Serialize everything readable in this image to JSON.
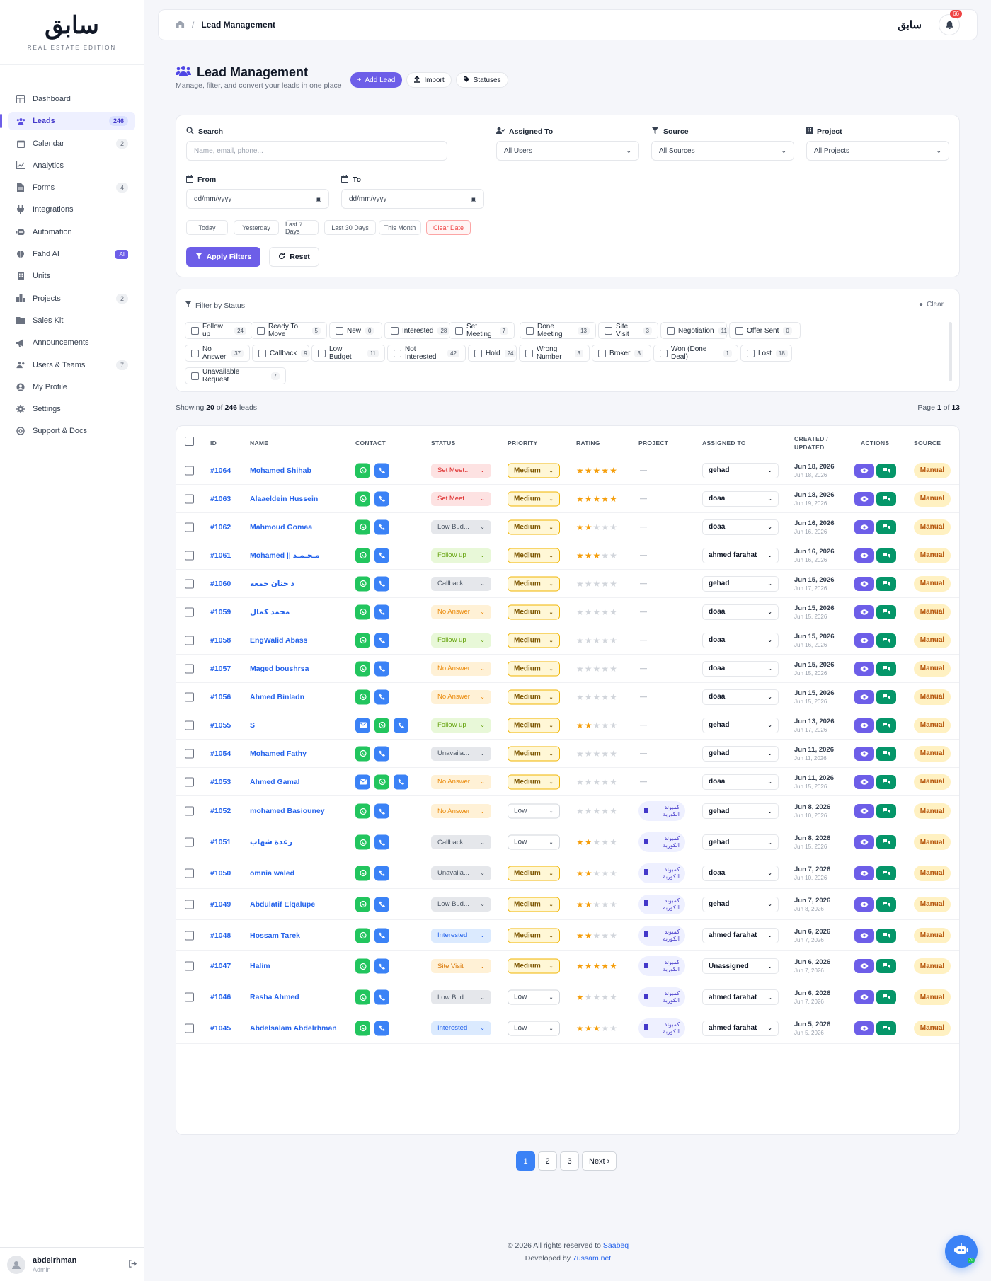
{
  "brand": {
    "logo_text": "سابق",
    "sub": "REAL ESTATE EDITION",
    "mini": "سابق"
  },
  "nav": [
    {
      "label": "Dashboard",
      "icon": "dashboard-icon",
      "badge": ""
    },
    {
      "label": "Leads",
      "icon": "users-icon",
      "badge": "246",
      "active": true
    },
    {
      "label": "Calendar",
      "icon": "calendar-icon",
      "badge": "2"
    },
    {
      "label": "Analytics",
      "icon": "chart-icon",
      "badge": ""
    },
    {
      "label": "Forms",
      "icon": "form-icon",
      "badge": "4"
    },
    {
      "label": "Integrations",
      "icon": "plug-icon",
      "badge": ""
    },
    {
      "label": "Automation",
      "icon": "robot-icon",
      "badge": ""
    },
    {
      "label": "Fahd AI",
      "icon": "brain-icon",
      "badge": "AI",
      "ai": true
    },
    {
      "label": "Units",
      "icon": "building-icon",
      "badge": ""
    },
    {
      "label": "Projects",
      "icon": "city-icon",
      "badge": "2"
    },
    {
      "label": "Sales Kit",
      "icon": "folder-icon",
      "badge": ""
    },
    {
      "label": "Announcements",
      "icon": "megaphone-icon",
      "badge": ""
    },
    {
      "label": "Users & Teams",
      "icon": "team-icon",
      "badge": "7"
    },
    {
      "label": "My Profile",
      "icon": "profile-icon",
      "badge": ""
    },
    {
      "label": "Settings",
      "icon": "gear-icon",
      "badge": ""
    },
    {
      "label": "Support & Docs",
      "icon": "lifebuoy-icon",
      "badge": ""
    }
  ],
  "user": {
    "name": "abdelrhman",
    "role": "Admin"
  },
  "topbar": {
    "crumb": "Lead Management",
    "notifications": "66"
  },
  "page": {
    "title": "Lead Management",
    "subtitle": "Manage, filter, and convert your leads in one place",
    "add_lead": "Add Lead",
    "import": "Import",
    "statuses": "Statuses"
  },
  "filters": {
    "search_label": "Search",
    "search_placeholder": "Name, email, phone...",
    "assigned_label": "Assigned To",
    "assigned_value": "All Users",
    "source_label": "Source",
    "source_value": "All Sources",
    "project_label": "Project",
    "project_value": "All Projects",
    "from_label": "From",
    "from_value": "dd/mm/yyyy",
    "to_label": "To",
    "to_value": "dd/mm/yyyy",
    "quick_dates": [
      "Today",
      "Yesterday",
      "Last 7 Days",
      "Last 30 Days",
      "This Month"
    ],
    "clear_date": "Clear Date",
    "apply": "Apply Filters",
    "reset": "Reset"
  },
  "status_filter": {
    "title": "Filter by Status",
    "clear": "Clear",
    "items": [
      {
        "label": "Follow up",
        "count": "24"
      },
      {
        "label": "Ready To Move",
        "count": "5"
      },
      {
        "label": "New",
        "count": "0"
      },
      {
        "label": "Interested",
        "count": "28"
      },
      {
        "label": "Set Meeting",
        "count": "7"
      },
      {
        "label": "Done Meeting",
        "count": "13"
      },
      {
        "label": "Site Visit",
        "count": "3"
      },
      {
        "label": "Negotiation",
        "count": "11"
      },
      {
        "label": "Offer Sent",
        "count": "0"
      },
      {
        "label": "No Answer",
        "count": "37"
      },
      {
        "label": "Callback",
        "count": "9"
      },
      {
        "label": "Low Budget",
        "count": "11"
      },
      {
        "label": "Not Interested",
        "count": "42"
      },
      {
        "label": "Hold",
        "count": "24"
      },
      {
        "label": "Wrong Number",
        "count": "3"
      },
      {
        "label": "Broker",
        "count": "3"
      },
      {
        "label": "Won (Done Deal)",
        "count": "1"
      },
      {
        "label": "Lost",
        "count": "18"
      },
      {
        "label": "Unavailable Request",
        "count": "7"
      }
    ]
  },
  "summary": {
    "showing_prefix": "Showing",
    "shown": "20",
    "of": "of",
    "total": "246",
    "suffix": "leads",
    "page_prefix": "Page",
    "page": "1",
    "pages": "13"
  },
  "table": {
    "headers": {
      "id": "ID",
      "name": "NAME",
      "contact": "CONTACT",
      "status": "STATUS",
      "priority": "PRIORITY",
      "rating": "RATING",
      "project": "PROJECT",
      "assigned": "ASSIGNED TO",
      "created": "CREATED / UPDATED",
      "actions": "ACTIONS",
      "source": "SOURCE"
    },
    "status_colors": {
      "Set Meet...": {
        "bg": "#fde2e2",
        "fg": "#dc2626"
      },
      "Low Bud...": {
        "bg": "#e5e7eb",
        "fg": "#4b5563"
      },
      "Follow up": {
        "bg": "#e8f8d8",
        "fg": "#65a30d"
      },
      "Callback": {
        "bg": "#e5e7eb",
        "fg": "#4b5563"
      },
      "No Answer": {
        "bg": "#fff1d6",
        "fg": "#ea8a0c"
      },
      "Unavaila...": {
        "bg": "#e5e7eb",
        "fg": "#4b5563"
      },
      "Interested": {
        "bg": "#dbeafe",
        "fg": "#2563eb"
      },
      "Site Visit": {
        "bg": "#fff1d6",
        "fg": "#d97706"
      }
    },
    "project_name": "كمبوند الكوربة",
    "rows": [
      {
        "id": "#1064",
        "name": "Mohamed Shihab",
        "email": false,
        "status": "Set Meet...",
        "priority": "Medium",
        "rating": 5,
        "project": "",
        "assigned": "gehad",
        "created": "Jun 18, 2026",
        "updated": "Jun 18, 2026",
        "source": "Manual"
      },
      {
        "id": "#1063",
        "name": "Alaaeldein Hussein",
        "email": false,
        "status": "Set Meet...",
        "priority": "Medium",
        "rating": 5,
        "project": "",
        "assigned": "doaa",
        "created": "Jun 18, 2026",
        "updated": "Jun 19, 2026",
        "source": "Manual"
      },
      {
        "id": "#1062",
        "name": "Mahmoud Gomaa",
        "email": false,
        "status": "Low Bud...",
        "priority": "Medium",
        "rating": 2,
        "project": "",
        "assigned": "doaa",
        "created": "Jun 16, 2026",
        "updated": "Jun 16, 2026",
        "source": "Manual"
      },
      {
        "id": "#1061",
        "name": "Mohamed || مـحـمـد",
        "email": false,
        "status": "Follow up",
        "priority": "Medium",
        "rating": 3,
        "project": "",
        "assigned": "ahmed farahat",
        "created": "Jun 16, 2026",
        "updated": "Jun 16, 2026",
        "source": "Manual"
      },
      {
        "id": "#1060",
        "name": "د حنان جمعه",
        "email": false,
        "status": "Callback",
        "priority": "Medium",
        "rating": 0,
        "project": "",
        "assigned": "gehad",
        "created": "Jun 15, 2026",
        "updated": "Jun 17, 2026",
        "source": "Manual"
      },
      {
        "id": "#1059",
        "name": "محمد كمال",
        "email": false,
        "status": "No Answer",
        "priority": "Medium",
        "rating": 0,
        "project": "",
        "assigned": "doaa",
        "created": "Jun 15, 2026",
        "updated": "Jun 15, 2026",
        "source": "Manual"
      },
      {
        "id": "#1058",
        "name": "EngWalid Abass",
        "email": false,
        "status": "Follow up",
        "priority": "Medium",
        "rating": 0,
        "project": "",
        "assigned": "doaa",
        "created": "Jun 15, 2026",
        "updated": "Jun 16, 2026",
        "source": "Manual"
      },
      {
        "id": "#1057",
        "name": "Maged boushrsa",
        "email": false,
        "status": "No Answer",
        "priority": "Medium",
        "rating": 0,
        "project": "",
        "assigned": "doaa",
        "created": "Jun 15, 2026",
        "updated": "Jun 15, 2026",
        "source": "Manual"
      },
      {
        "id": "#1056",
        "name": "Ahmed Binladn",
        "email": false,
        "status": "No Answer",
        "priority": "Medium",
        "rating": 0,
        "project": "",
        "assigned": "doaa",
        "created": "Jun 15, 2026",
        "updated": "Jun 15, 2026",
        "source": "Manual"
      },
      {
        "id": "#1055",
        "name": "S",
        "email": true,
        "status": "Follow up",
        "priority": "Medium",
        "rating": 2,
        "project": "",
        "assigned": "gehad",
        "created": "Jun 13, 2026",
        "updated": "Jun 17, 2026",
        "source": "Manual"
      },
      {
        "id": "#1054",
        "name": "Mohamed Fathy",
        "email": false,
        "status": "Unavaila...",
        "priority": "Medium",
        "rating": 0,
        "project": "",
        "assigned": "gehad",
        "created": "Jun 11, 2026",
        "updated": "Jun 11, 2026",
        "source": "Manual"
      },
      {
        "id": "#1053",
        "name": "Ahmed Gamal",
        "email": true,
        "status": "No Answer",
        "priority": "Medium",
        "rating": 0,
        "project": "",
        "assigned": "doaa",
        "created": "Jun 11, 2026",
        "updated": "Jun 15, 2026",
        "source": "Manual"
      },
      {
        "id": "#1052",
        "name": "mohamed Basiouney",
        "email": false,
        "status": "No Answer",
        "priority": "Low",
        "rating": 0,
        "project": "كمبوند الكوربة",
        "assigned": "gehad",
        "created": "Jun 8, 2026",
        "updated": "Jun 10, 2026",
        "source": "Manual"
      },
      {
        "id": "#1051",
        "name": "رغدة شهاب",
        "email": false,
        "status": "Callback",
        "priority": "Low",
        "rating": 2,
        "project": "كمبوند الكوربة",
        "assigned": "gehad",
        "created": "Jun 8, 2026",
        "updated": "Jun 15, 2026",
        "source": "Manual"
      },
      {
        "id": "#1050",
        "name": "omnia waled",
        "email": false,
        "status": "Unavaila...",
        "priority": "Medium",
        "rating": 2,
        "project": "كمبوند الكوربة",
        "assigned": "doaa",
        "created": "Jun 7, 2026",
        "updated": "Jun 10, 2026",
        "source": "Manual"
      },
      {
        "id": "#1049",
        "name": "Abdulatif Elqalupe",
        "email": false,
        "status": "Low Bud...",
        "priority": "Medium",
        "rating": 2,
        "project": "كمبوند الكوربة",
        "assigned": "gehad",
        "created": "Jun 7, 2026",
        "updated": "Jun 8, 2026",
        "source": "Manual"
      },
      {
        "id": "#1048",
        "name": "Hossam Tarek",
        "email": false,
        "status": "Interested",
        "priority": "Medium",
        "rating": 2,
        "project": "كمبوند الكوربة",
        "assigned": "ahmed farahat",
        "created": "Jun 6, 2026",
        "updated": "Jun 7, 2026",
        "source": "Manual"
      },
      {
        "id": "#1047",
        "name": "Halim",
        "email": false,
        "status": "Site Visit",
        "priority": "Medium",
        "rating": 5,
        "project": "كمبوند الكوربة",
        "assigned": "Unassigned",
        "created": "Jun 6, 2026",
        "updated": "Jun 7, 2026",
        "source": "Manual"
      },
      {
        "id": "#1046",
        "name": "Rasha Ahmed",
        "email": false,
        "status": "Low Bud...",
        "priority": "Low",
        "rating": 1,
        "project": "كمبوند الكوربة",
        "assigned": "ahmed farahat",
        "created": "Jun 6, 2026",
        "updated": "Jun 7, 2026",
        "source": "Manual"
      },
      {
        "id": "#1045",
        "name": "Abdelsalam Abdelrhman",
        "email": false,
        "status": "Interested",
        "priority": "Low",
        "rating": 3,
        "project": "كمبوند الكوربة",
        "assigned": "ahmed farahat",
        "created": "Jun 5, 2026",
        "updated": "Jun 5, 2026",
        "source": "Manual"
      }
    ]
  },
  "pagination": {
    "pages": [
      "1",
      "2",
      "3"
    ],
    "next": "Next"
  },
  "footer": {
    "line1_prefix": "© 2026 All rights reserved to",
    "brand": "Saabeq",
    "line2_prefix": "Developed by",
    "dev": "7ussam.net"
  },
  "colors": {
    "accent": "#6d5ee8",
    "link": "#2563eb",
    "success": "#22c55e",
    "warning": "#f0b400"
  }
}
